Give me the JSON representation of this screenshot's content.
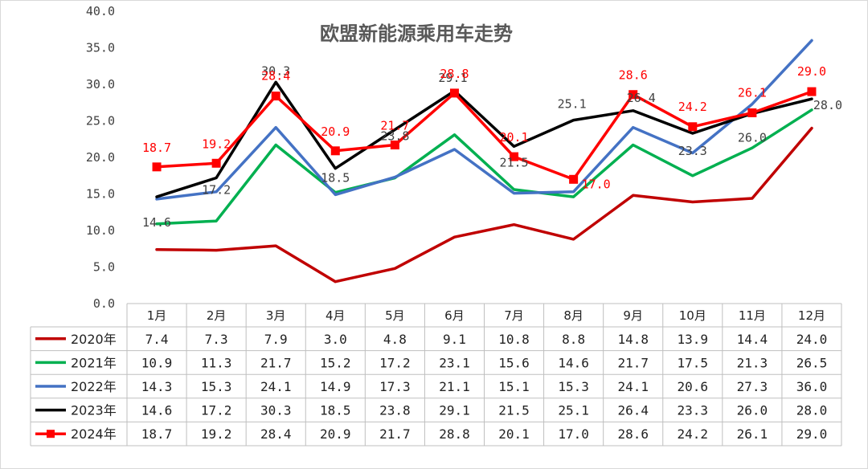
{
  "chart_data": {
    "type": "line",
    "title": "欧盟新能源乘用车走势",
    "categories": [
      "1月",
      "2月",
      "3月",
      "4月",
      "5月",
      "6月",
      "7月",
      "8月",
      "9月",
      "10月",
      "11月",
      "12月"
    ],
    "y_ticks": [
      "0.0",
      "5.0",
      "10.0",
      "15.0",
      "20.0",
      "25.0",
      "30.0",
      "35.0",
      "40.0"
    ],
    "ylim": [
      0,
      40
    ],
    "grid": false,
    "legend": "data-table",
    "series": [
      {
        "name": "2020年",
        "color": "#C00000",
        "values": [
          7.4,
          7.3,
          7.9,
          3.0,
          4.8,
          9.1,
          10.8,
          8.8,
          14.8,
          13.9,
          14.4,
          24.0
        ],
        "labels": [
          "7.4",
          "7.3",
          "7.9",
          "3.0",
          "4.8",
          "9.1",
          "10.8",
          "8.8",
          "14.8",
          "13.9",
          "14.4",
          "24.0"
        ]
      },
      {
        "name": "2021年",
        "color": "#00B050",
        "values": [
          10.9,
          11.3,
          21.7,
          15.2,
          17.2,
          23.1,
          15.6,
          14.6,
          21.7,
          17.5,
          21.3,
          26.5
        ],
        "labels": [
          "10.9",
          "11.3",
          "21.7",
          "15.2",
          "17.2",
          "23.1",
          "15.6",
          "14.6",
          "21.7",
          "17.5",
          "21.3",
          "26.5"
        ]
      },
      {
        "name": "2022年",
        "color": "#4472C4",
        "values": [
          14.3,
          15.3,
          24.1,
          14.9,
          17.3,
          21.1,
          15.1,
          15.3,
          24.1,
          20.6,
          27.3,
          36.0
        ],
        "labels": [
          "14.3",
          "15.3",
          "24.1",
          "14.9",
          "17.3",
          "21.1",
          "15.1",
          "15.3",
          "24.1",
          "20.6",
          "27.3",
          "36.0"
        ]
      },
      {
        "name": "2023年",
        "color": "#000000",
        "values": [
          14.6,
          17.2,
          30.3,
          18.5,
          23.8,
          29.1,
          21.5,
          25.1,
          26.4,
          23.3,
          26.0,
          28.0
        ],
        "labels": [
          "14.6",
          "17.2",
          "30.3",
          "18.5",
          "23.8",
          "29.1",
          "21.5",
          "25.1",
          "26.4",
          "23.3",
          "26.0",
          "28.0"
        ],
        "shown_labels": [
          "14.6",
          "17.2",
          "30.3",
          "18.5",
          "23.8",
          "29.1",
          "21.5",
          "25.1",
          "26.4",
          "23.3",
          "26.0",
          "28.0"
        ]
      },
      {
        "name": "2024年",
        "color": "#FF0000",
        "marker": "square",
        "values": [
          18.7,
          19.2,
          28.4,
          20.9,
          21.7,
          28.8,
          20.1,
          17.0,
          28.6,
          24.2,
          26.1,
          29.0
        ],
        "labels": [
          "18.7",
          "19.2",
          "28.4",
          "20.9",
          "21.7",
          "28.8",
          "20.1",
          "17.0",
          "28.6",
          "24.2",
          "26.1",
          "29.0"
        ]
      }
    ]
  }
}
